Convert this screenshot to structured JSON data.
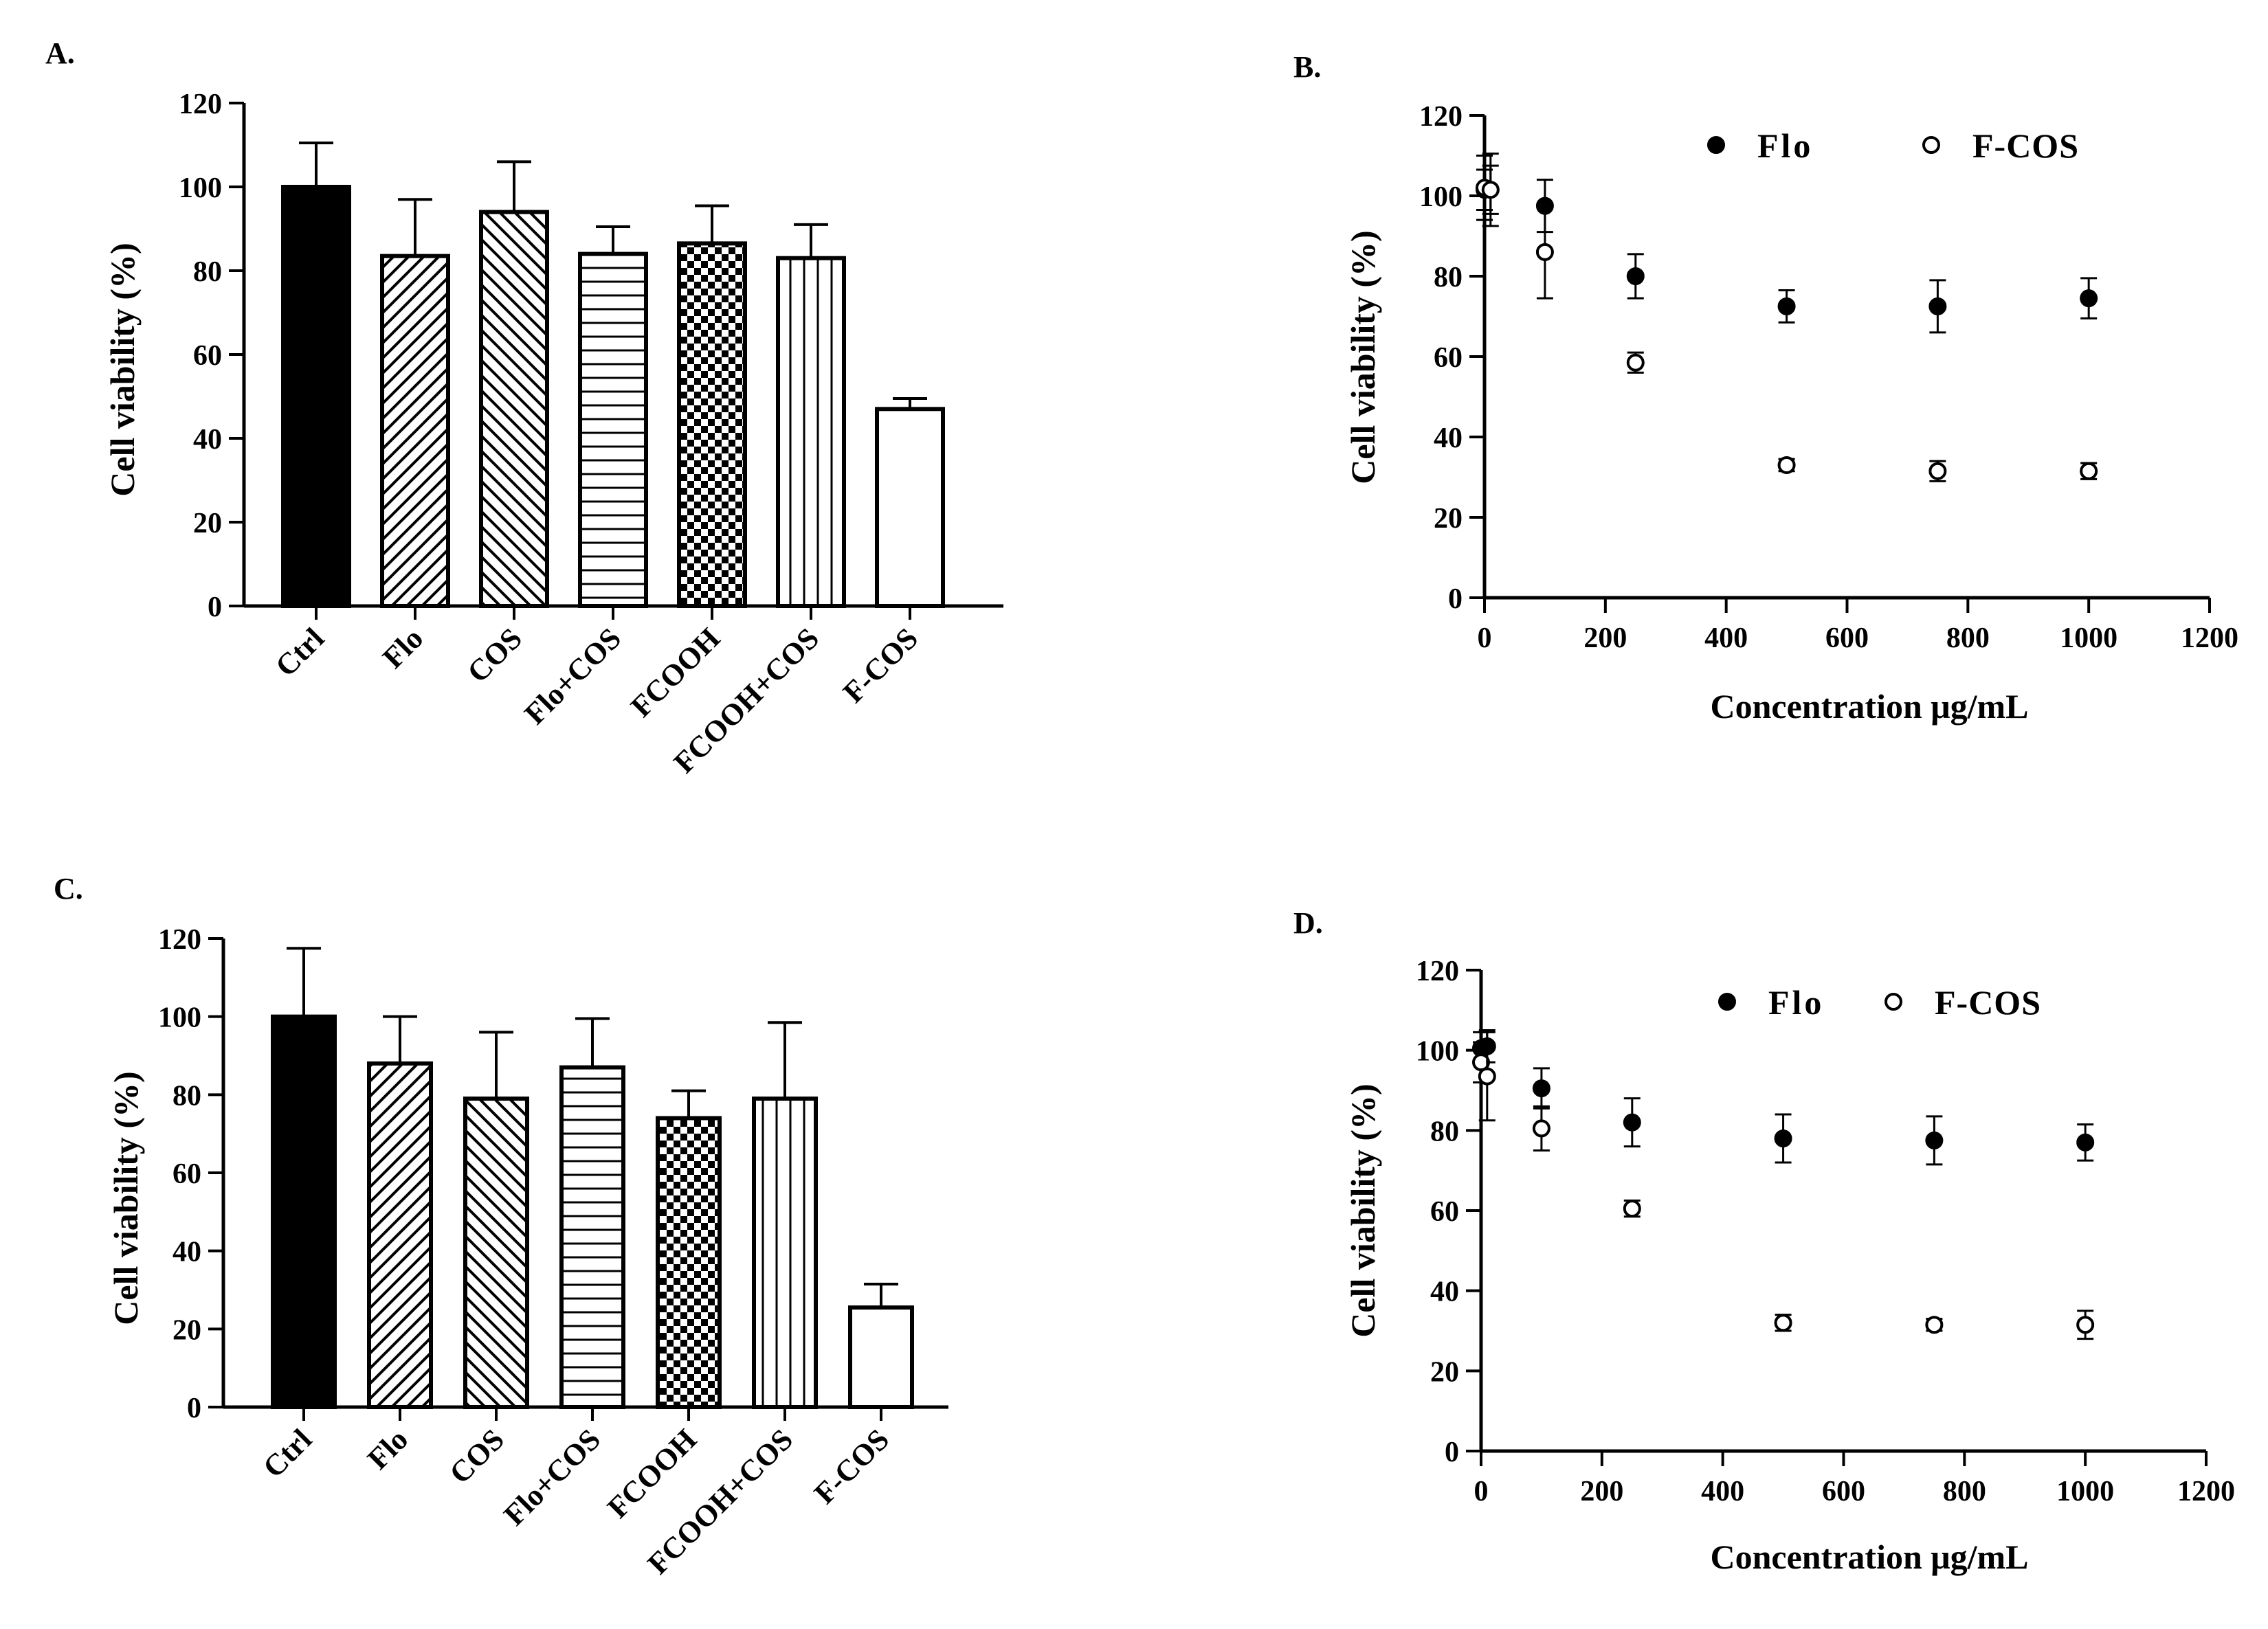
{
  "chart_data": [
    {
      "panel": "A.",
      "type": "bar",
      "ylabel": "Cell viability (%)",
      "ylim": [
        0,
        120
      ],
      "yticks": [
        0,
        20,
        40,
        60,
        80,
        100,
        120
      ],
      "categories": [
        "Ctrl",
        "Flo",
        "COS",
        "Flo+COS",
        "FCOOH",
        "FCOOH+COS",
        "F-COS"
      ],
      "patterns": [
        "solid",
        "diag-up",
        "diag-down",
        "horizontal",
        "checker",
        "vertical",
        "empty"
      ],
      "values": [
        100,
        83.5,
        94,
        84,
        86.5,
        83,
        47
      ],
      "errors": [
        10.5,
        13.5,
        12,
        6.5,
        9,
        8,
        2.5
      ]
    },
    {
      "panel": "B.",
      "type": "scatter",
      "xlabel": "Concentration μg/mL",
      "ylabel": "Cell viability (%)",
      "xlim": [
        0,
        1200
      ],
      "xticks": [
        0,
        200,
        400,
        600,
        800,
        1000,
        1200
      ],
      "ylim": [
        0,
        120
      ],
      "yticks": [
        0,
        20,
        40,
        60,
        80,
        100,
        120
      ],
      "legend": "top",
      "series": [
        {
          "name": "Flo",
          "marker": "filled",
          "x": [
            0,
            10,
            100,
            250,
            500,
            750,
            1000
          ],
          "y": [
            101.5,
            101.5,
            97.5,
            80,
            72.5,
            72.5,
            74.5
          ],
          "err": [
            5,
            6,
            6.5,
            5.5,
            4,
            6.5,
            5
          ]
        },
        {
          "name": "F-COS",
          "marker": "open",
          "x": [
            0,
            10,
            100,
            250,
            500,
            750,
            1000
          ],
          "y": [
            102,
            101.5,
            86,
            58.5,
            33,
            31.5,
            31.5
          ],
          "err": [
            8,
            9,
            11.5,
            2.5,
            1.5,
            2.5,
            2
          ]
        }
      ]
    },
    {
      "panel": "C.",
      "type": "bar",
      "ylabel": "Cell viability (%)",
      "ylim": [
        0,
        120
      ],
      "yticks": [
        0,
        20,
        40,
        60,
        80,
        100,
        120
      ],
      "categories": [
        "Ctrl",
        "Flo",
        "COS",
        "Flo+COS",
        "FCOOH",
        "FCOOH+COS",
        "F-COS"
      ],
      "patterns": [
        "solid",
        "diag-up",
        "diag-down",
        "horizontal",
        "checker",
        "vertical",
        "empty"
      ],
      "values": [
        100,
        88,
        79,
        87,
        74,
        79,
        25.5
      ],
      "errors": [
        17.5,
        12,
        17,
        12.5,
        7,
        19.5,
        6
      ]
    },
    {
      "panel": "D.",
      "type": "scatter",
      "xlabel": "Concentration μg/mL",
      "ylabel": "Cell viability (%)",
      "xlim": [
        0,
        1200
      ],
      "xticks": [
        0,
        200,
        400,
        600,
        800,
        1000,
        1200
      ],
      "ylim": [
        0,
        120
      ],
      "yticks": [
        0,
        20,
        40,
        60,
        80,
        100,
        120
      ],
      "legend": "top",
      "series": [
        {
          "name": "Flo",
          "marker": "filled",
          "x": [
            0,
            10,
            100,
            250,
            500,
            750,
            1000
          ],
          "y": [
            100.5,
            101,
            90.5,
            82,
            78,
            77.5,
            77
          ],
          "err": [
            4,
            4,
            5,
            6,
            6,
            6,
            4.5
          ]
        },
        {
          "name": "F-COS",
          "marker": "open",
          "x": [
            0,
            10,
            100,
            250,
            500,
            750,
            1000
          ],
          "y": [
            97,
            93.5,
            80.5,
            60.5,
            32,
            31.5,
            31.5
          ],
          "err": [
            5,
            11,
            5.5,
            2,
            2,
            1.5,
            3.5
          ]
        }
      ]
    }
  ]
}
